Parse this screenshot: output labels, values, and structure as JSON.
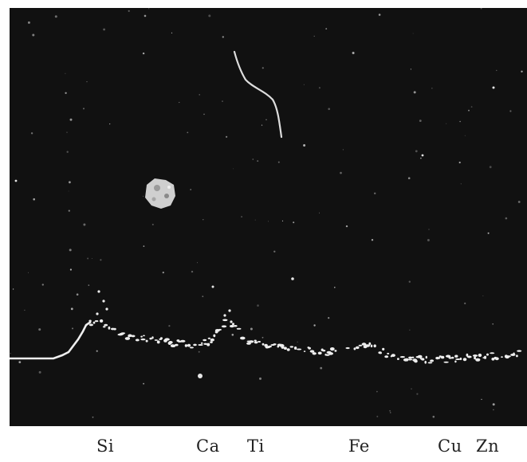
{
  "element_labels": [
    "Si",
    "Ca",
    "Ti",
    "Fe",
    "Cu",
    "Zn"
  ],
  "colors": {
    "background": "#111111",
    "trace": "#eeeeee",
    "page": "#ffffff",
    "label": "#222222"
  }
}
